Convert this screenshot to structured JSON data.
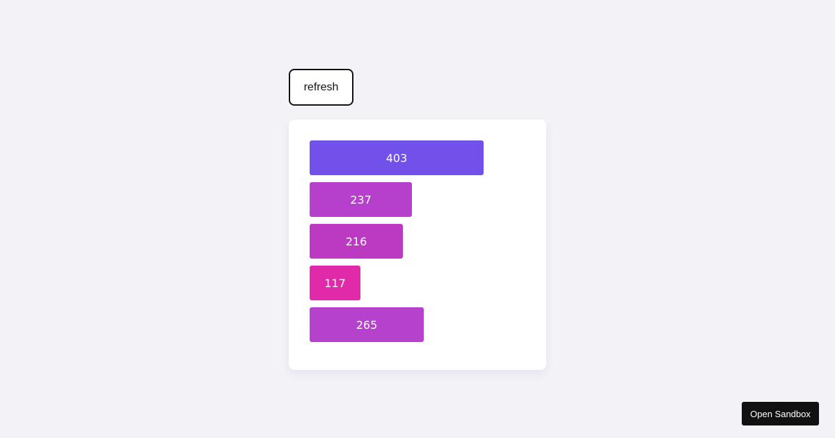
{
  "toolbar": {
    "refresh_label": "refresh"
  },
  "footer": {
    "sandbox_label": "Open Sandbox"
  },
  "chart_data": {
    "type": "bar",
    "orientation": "horizontal",
    "title": "",
    "xlabel": "",
    "ylabel": "",
    "grid": false,
    "legend": "none",
    "values": [
      403,
      237,
      216,
      117,
      265
    ],
    "labels": [
      "403",
      "237",
      "216",
      "117",
      "265"
    ],
    "colors": [
      "#7151ea",
      "#b63fcb",
      "#bc39c1",
      "#e02aa9",
      "#b541cd"
    ]
  }
}
